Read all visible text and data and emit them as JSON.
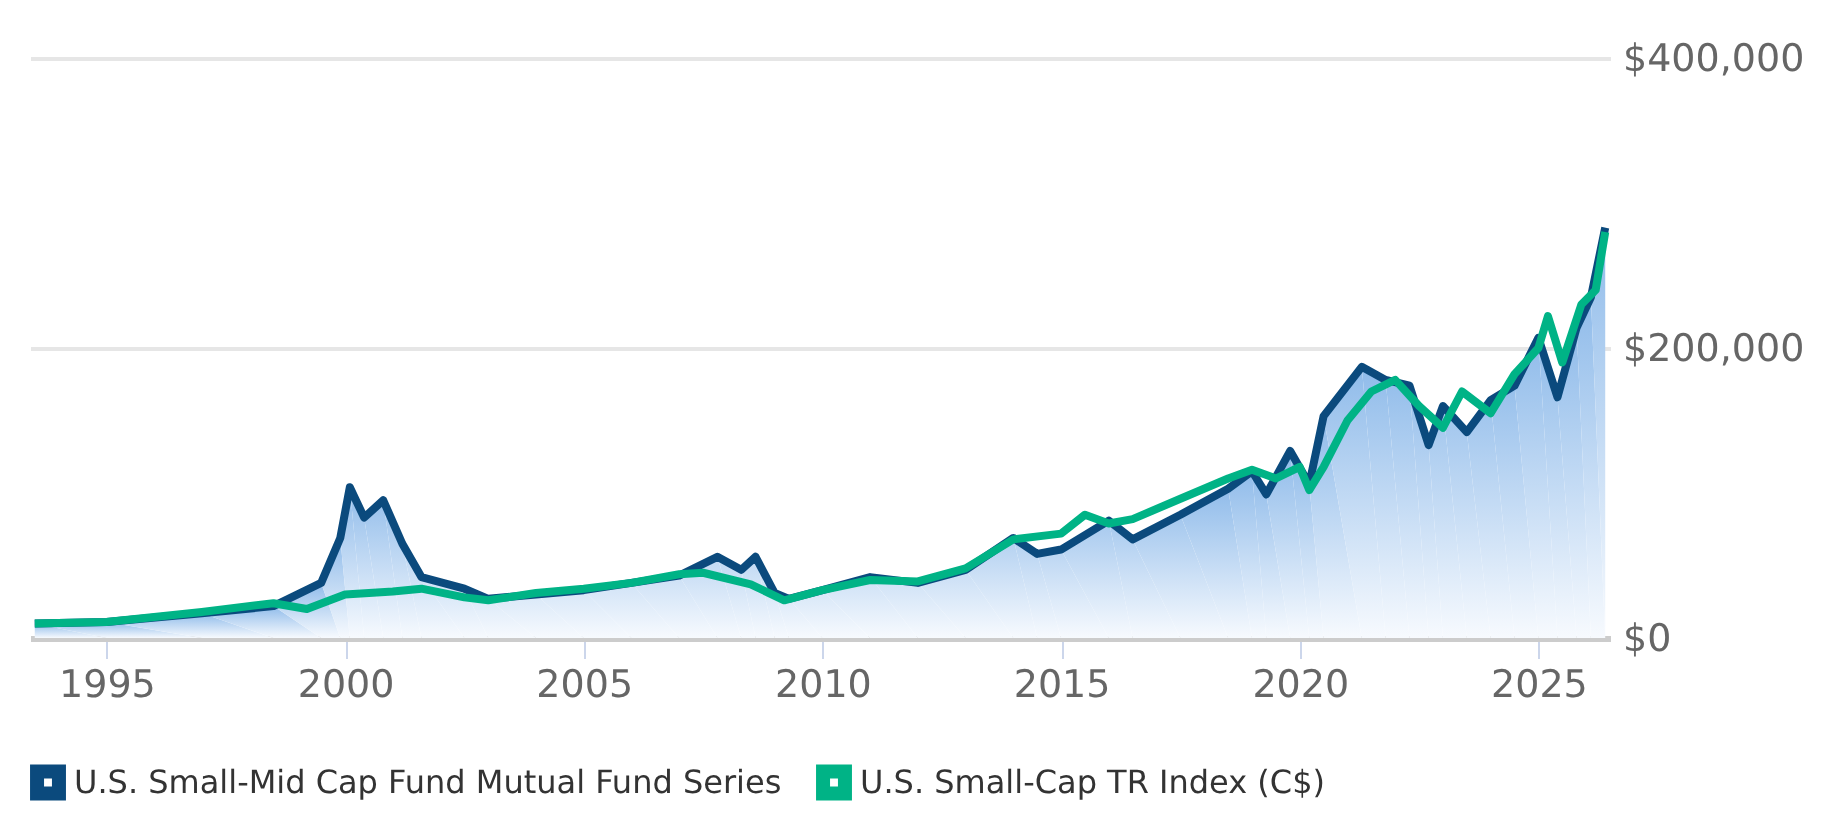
{
  "chart_data": {
    "type": "line",
    "xlim": [
      1993.4,
      2026.5
    ],
    "xticks": [
      1995,
      2000,
      2005,
      2010,
      2015,
      2020,
      2025
    ],
    "ylim": [
      0,
      400000
    ],
    "yticks": [
      {
        "value": 0,
        "label": "$0"
      },
      {
        "value": 200000,
        "label": "$200,000"
      },
      {
        "value": 400000,
        "label": "$400,000"
      }
    ],
    "grid": "y",
    "legend": "bottom left",
    "marker": "none",
    "line_style": "solid",
    "series": [
      {
        "name": "U.S. Small-Mid Cap Fund Mutual Fund Series",
        "color": "#0b4a7d",
        "type": "area",
        "x": [
          1993.5,
          1995,
          1997,
          1998.5,
          1999.5,
          1999.9,
          2000.1,
          2000.4,
          2000.8,
          2001.2,
          2001.6,
          2002.5,
          2003,
          2004,
          2005,
          2006,
          2007,
          2007.8,
          2008.3,
          2008.6,
          2009,
          2009.3,
          2010,
          2011,
          2012,
          2013,
          2014,
          2014.5,
          2015,
          2016,
          2016.5,
          2017.5,
          2018.5,
          2019,
          2019.3,
          2019.8,
          2020.2,
          2020.5,
          2021.3,
          2021.8,
          2022.3,
          2022.7,
          2023,
          2023.5,
          2024,
          2024.5,
          2025,
          2025.4,
          2025.8,
          2026.1,
          2026.4
        ],
        "values": [
          10000,
          11000,
          17000,
          22000,
          38000,
          69000,
          104000,
          83000,
          95000,
          65000,
          42000,
          34000,
          27000,
          30000,
          33000,
          38000,
          43000,
          56000,
          47000,
          56000,
          31000,
          27000,
          33000,
          42000,
          38000,
          47000,
          69000,
          58000,
          61000,
          81000,
          68000,
          85000,
          103000,
          115000,
          99000,
          129000,
          106000,
          153000,
          187000,
          178000,
          174000,
          133000,
          160000,
          142000,
          164000,
          174000,
          207000,
          166000,
          214000,
          235000,
          283000
        ]
      },
      {
        "name": "U.S. Small-Cap TR Index (C$)",
        "color": "#00b386",
        "x": [
          1993.5,
          1995,
          1997,
          1998.5,
          1999.2,
          2000,
          2001,
          2001.6,
          2002.5,
          2003,
          2004,
          2005,
          2006,
          2007,
          2007.5,
          2008.5,
          2009.2,
          2010,
          2011,
          2012,
          2013,
          2014,
          2015,
          2015.5,
          2016,
          2016.5,
          2017.5,
          2018.5,
          2019,
          2019.5,
          2020,
          2020.2,
          2020.5,
          2021,
          2021.5,
          2022,
          2022.5,
          2023,
          2023.4,
          2024,
          2024.5,
          2025,
          2025.2,
          2025.5,
          2025.9,
          2026.2,
          2026.4
        ],
        "values": [
          10000,
          11000,
          18000,
          24000,
          20000,
          30000,
          32000,
          34000,
          28000,
          26000,
          31000,
          34000,
          38000,
          44000,
          45000,
          37000,
          26000,
          33000,
          40000,
          39000,
          48000,
          68000,
          72000,
          85000,
          79000,
          82000,
          96000,
          110000,
          116000,
          110000,
          118000,
          102000,
          118000,
          150000,
          170000,
          178000,
          160000,
          145000,
          170000,
          155000,
          182000,
          200000,
          222000,
          190000,
          230000,
          240000,
          280000
        ]
      }
    ]
  }
}
